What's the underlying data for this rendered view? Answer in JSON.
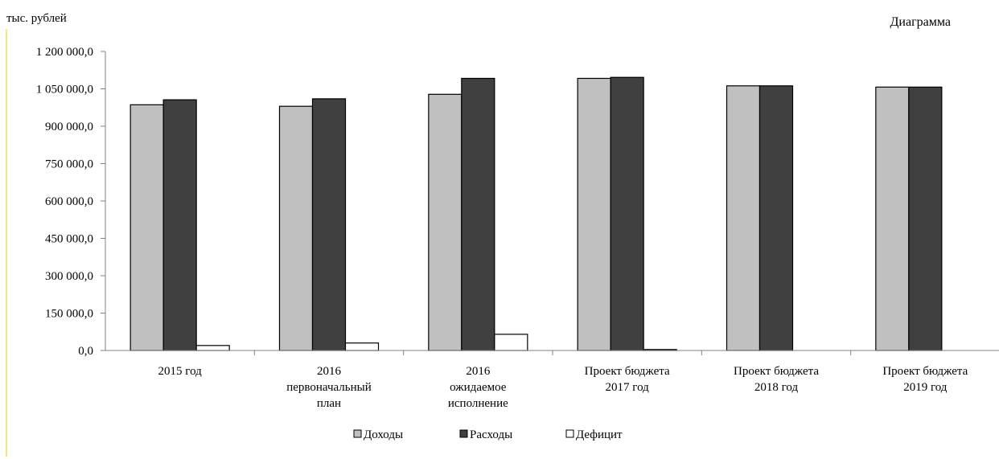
{
  "chart_data": {
    "type": "bar",
    "unit_label": "тыс. рублей",
    "title": "Диаграмма",
    "categories": [
      [
        "2015 год"
      ],
      [
        "2016",
        "первоначальный",
        "план"
      ],
      [
        "2016",
        "ожидаемое",
        "исполнение"
      ],
      [
        "Проект бюджета",
        "2017 год"
      ],
      [
        "Проект бюджета",
        "2018 год"
      ],
      [
        "Проект бюджета",
        "2019 год"
      ]
    ],
    "series": [
      {
        "name": "Доходы",
        "color": "#c0c0c0",
        "values": [
          986000,
          980000,
          1028000,
          1092000,
          1062000,
          1057000
        ]
      },
      {
        "name": "Расходы",
        "color": "#404040",
        "values": [
          1006000,
          1010000,
          1092000,
          1096000,
          1062000,
          1057000
        ]
      },
      {
        "name": "Дефицит",
        "color": "#ffffff",
        "values": [
          20000,
          30000,
          65000,
          4000,
          0,
          0
        ]
      }
    ],
    "ylim": [
      0,
      1200000
    ],
    "yticks": [
      "0,0",
      "150 000,0",
      "300 000,0",
      "450 000,0",
      "600 000,0",
      "750 000,0",
      "900 000,0",
      "1 050 000,0",
      "1 200 000,0"
    ],
    "legend_position": "bottom",
    "grid": false
  }
}
